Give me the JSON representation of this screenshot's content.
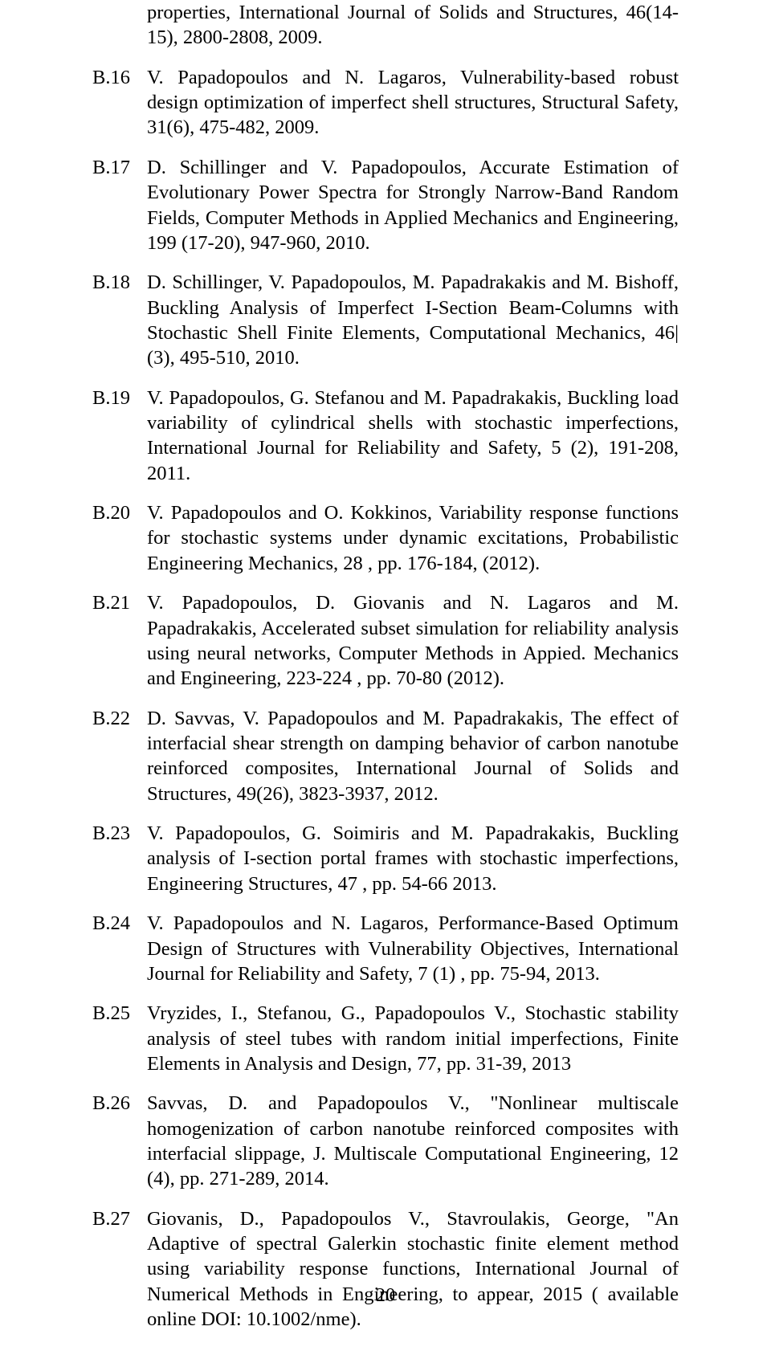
{
  "page_number": "20",
  "continuation_text": "properties, International Journal of Solids and Structures, 46(14-15), 2800-2808, 2009.",
  "references": [
    {
      "label": "B.16",
      "text": "V. Papadopoulos and N. Lagaros, Vulnerability-based robust design optimization of imperfect shell structures, Structural Safety, 31(6), 475-482, 2009."
    },
    {
      "label": "B.17",
      "text": "D. Schillinger and V. Papadopoulos, Accurate Estimation of Evolutionary Power Spectra for Strongly Narrow-Band Random Fields, Computer Methods in Applied Mechanics and Engineering, 199 (17-20), 947-960, 2010."
    },
    {
      "label": "B.18",
      "text": "D. Schillinger, V. Papadopoulos, M. Papadrakakis and M. Bishoff, Buckling Analysis of Imperfect I-Section Beam-Columns with Stochastic Shell Finite Elements, Computational Mechanics, 46|(3), 495-510, 2010."
    },
    {
      "label": "B.19",
      "text": "V. Papadopoulos, G. Stefanou and M. Papadrakakis, Buckling load variability of cylindrical shells with stochastic imperfections, International Journal for Reliability and Safety, 5 (2), 191-208, 2011."
    },
    {
      "label": "B.20",
      "text": "V. Papadopoulos and O. Kokkinos, Variability response functions for stochastic systems under dynamic excitations, Probabilistic Engineering Mechanics, 28 , pp. 176-184, (2012)."
    },
    {
      "label": "B.21",
      "text": "V. Papadopoulos, D. Giovanis and N. Lagaros and M. Papadrakakis, Accelerated subset simulation for reliability analysis using neural networks, Computer Methods in Appied. Mechanics and Engineering, 223-224 , pp. 70-80 (2012)."
    },
    {
      "label": "B.22",
      "text": "D. Savvas, V.  Papadopoulos and M. Papadrakakis, The effect of interfacial shear strength on damping behavior of carbon nanotube reinforced composites, International Journal of Solids and Structures, 49(26), 3823-3937, 2012."
    },
    {
      "label": "B.23",
      "text": "V. Papadopoulos, G. Soimiris and M. Papadrakakis, Buckling analysis of I-section portal frames with stochastic imperfections, Engineering Structures, 47 , pp. 54-66 2013."
    },
    {
      "label": "B.24",
      "text": "V. Papadopoulos and N. Lagaros, Performance-Based Optimum Design of Structures with Vulnerability Objectives, International Journal for Reliability and Safety, 7 (1) , pp. 75-94, 2013."
    },
    {
      "label": "B.25",
      "text": "Vryzides, I., Stefanou, G., Papadopoulos V., Stochastic stability analysis of steel tubes with random initial imperfections, Finite Elements in Analysis and Design, 77, pp. 31-39, 2013"
    },
    {
      "label": "B.26",
      "text": "Savvas, D. and Papadopoulos V., \"Nonlinear multiscale homogenization of carbon nanotube reinforced composites with interfacial slippage, J. Multiscale Computational Engineering, 12 (4), pp. 271-289, 2014."
    },
    {
      "label": "B.27",
      "text": "Giovanis, D., Papadopoulos V., Stavroulakis, George, \"An Adaptive of spectral Galerkin stochastic finite element method using variability response functions, International Journal of Numerical Methods in Engineering, to appear, 2015 ( available online DOI: 10.1002/nme)."
    }
  ]
}
